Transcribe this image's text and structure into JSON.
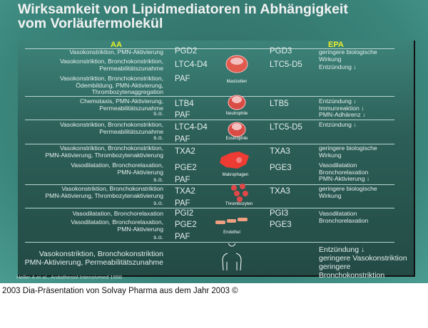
{
  "title": "Wirksamkeit von Lipidmediatoren in Abhängigkeit\nvom Vorläufermolekül",
  "headers": {
    "aa": "AA",
    "epa": "EPA"
  },
  "sections": [
    {
      "cell": "Mastzellen",
      "icon": "mast-cell-icon",
      "rows": [
        {
          "desc": "Vasokonstriktion, PMN-Aktivierung",
          "aa": "PGD2",
          "epa": "PGD3",
          "effect": "geringere biologische\nWirkung"
        },
        {
          "desc": "Vasokonstriktion, Bronchokonstriktion,\nPermeabilitätszunahme",
          "aa": "LTC4-D4",
          "epa": "LTC5-D5",
          "effect": "Entzündung ↓"
        },
        {
          "desc": "Vasokonstriktion, Bronchokonstriktion,\nÖdembildung, PMN-Aktivierung,\nThrombozytenaggregation",
          "aa": "PAF",
          "epa": "",
          "effect": ""
        }
      ]
    },
    {
      "cell": "Neutrophile",
      "icon": "neutrophil-icon",
      "rows": [
        {
          "desc": "Chemotaxis, PMN-Aktivierung,\nPermeabilitätszunahme",
          "aa": "LTB4",
          "epa": "LTB5",
          "effect": "Entzündung ↓\nImmunreaktion ↓\nPMN-Adhärenz ↓"
        },
        {
          "desc": "s.o.",
          "aa": "PAF",
          "epa": "",
          "effect": ""
        }
      ]
    },
    {
      "cell": "Eosinophile",
      "icon": "eosinophil-icon",
      "rows": [
        {
          "desc": "Vasokonstriktion, Bronchokonstriktion,\nPermeabilitätszunahme",
          "aa": "LTC4-D4",
          "epa": "LTC5-D5",
          "effect": "Entzündung ↓"
        },
        {
          "desc": "s.o.",
          "aa": "PAF",
          "epa": "",
          "effect": ""
        }
      ]
    },
    {
      "cell": "Makrophagen",
      "icon": "macrophage-icon",
      "rows": [
        {
          "desc": "Vasokonstriktion, Bronchokonstriktion,\nPMN-Aktivierung, Thrombozytenaktivierung",
          "aa": "TXA2",
          "epa": "TXA3",
          "effect": "geringere biologische\nWirkung"
        },
        {
          "desc": "Vasodilatation, Bronchorelaxation,\nPMN-Aktivierung",
          "aa": "PGE2",
          "epa": "PGE3",
          "effect": "Vasodilatation\nBronchorelaxation\nPMN-Aktivierung ↓"
        },
        {
          "desc": "s.o.",
          "aa": "PAF",
          "epa": "",
          "effect": ""
        }
      ]
    },
    {
      "cell": "Thrombozyten",
      "icon": "platelet-icon",
      "rows": [
        {
          "desc": "Vasokonstriktion, Bronchokonstriktion\nPMN-Aktivierung, Thrombozytenaktivierung",
          "aa": "TXA2",
          "epa": "TXA3",
          "effect": "geringere biologische\nWirkung"
        },
        {
          "desc": "s.o.",
          "aa": "PAF",
          "epa": "",
          "effect": ""
        }
      ]
    },
    {
      "cell": "Endothel",
      "icon": "endothelium-icon",
      "rows": [
        {
          "desc": "Vasodilatation, Bronchorelaxation",
          "aa": "PGI2",
          "epa": "PGI3",
          "effect": "Vasodilatation\nBronchorelaxation"
        },
        {
          "desc": "Vasodilatation, Bronchorelaxation,\nPMN-Aktivierung",
          "aa": "PGE2",
          "epa": "PGE3",
          "effect": ""
        },
        {
          "desc": "s.o.",
          "aa": "PAF",
          "epa": "",
          "effect": ""
        }
      ]
    },
    {
      "cell": "",
      "icon": "human-body-icon",
      "rows": [
        {
          "desc": "Vasokonstriktion, Bronchokonstriktion\nPMN-Aktivierung, Permeabilitätszunahme",
          "aa": "",
          "epa": "",
          "effect": "Entzündung ↓\ngeringere Vasokonstriktion\ngeringere Bronchokonstriktion"
        }
      ]
    }
  ],
  "citation": "Heller A et al.,  Anästhesiol Intensivmed 1998",
  "footer": "2003 Dia-Präsentation von Solvay Pharma aus dem Jahr 2003 ©"
}
